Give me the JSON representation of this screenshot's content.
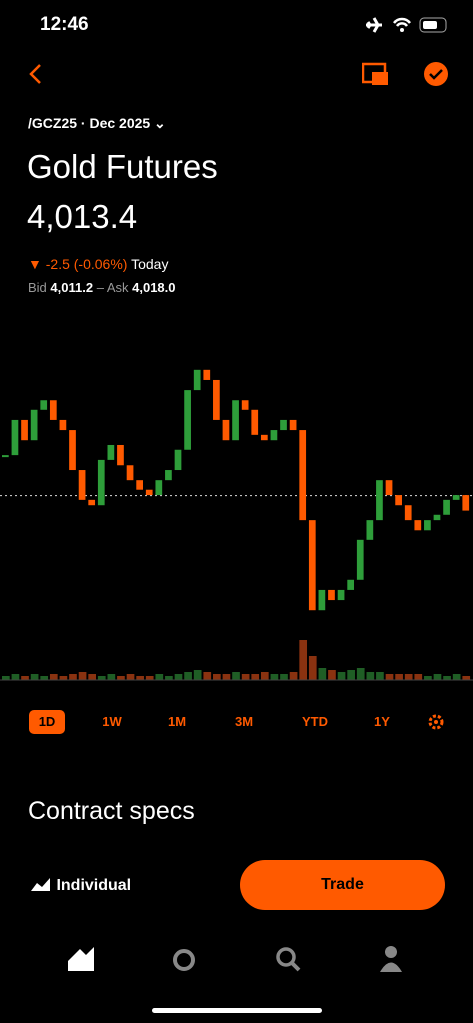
{
  "status_bar": {
    "time": "12:46"
  },
  "header": {
    "contract": "/GCZ25 · Dec 2025",
    "title": "Gold Futures",
    "price": "4,013.4",
    "change": "-2.5 (-0.06%)",
    "change_period": "Today",
    "bid_label": "Bid",
    "bid": "4,011.2",
    "ask_label": "– Ask",
    "ask": "4,018.0"
  },
  "chart": {
    "type": "candlestick",
    "ylim": [
      3985,
      4042
    ],
    "previous_close": 4015.9,
    "closes": [
      4022.7,
      4028.6,
      4025.2,
      4030.3,
      4031.9,
      4028.6,
      4026.9,
      4020.2,
      4015.2,
      4014.3,
      4021.9,
      4024.4,
      4021.0,
      4018.5,
      4016.9,
      4016.0,
      4018.5,
      4020.2,
      4023.6,
      4033.6,
      4037.0,
      4035.3,
      4028.6,
      4025.2,
      4031.9,
      4030.3,
      4026.1,
      4025.2,
      4026.9,
      4028.6,
      4026.9,
      4011.8,
      3996.7,
      4000.1,
      3998.4,
      4000.1,
      4001.8,
      4008.5,
      4011.8,
      4018.5,
      4016.0,
      4014.3,
      4011.8,
      4010.1,
      4011.8,
      4012.7,
      4015.2,
      4016.0,
      4013.4
    ],
    "volumes": [
      2,
      3,
      2,
      3,
      2,
      3,
      2,
      3,
      4,
      3,
      2,
      3,
      2,
      3,
      2,
      2,
      3,
      2,
      3,
      4,
      5,
      4,
      3,
      3,
      4,
      3,
      3,
      4,
      3,
      3,
      4,
      20,
      12,
      6,
      5,
      4,
      5,
      6,
      4,
      4,
      3,
      3,
      3,
      3,
      2,
      3,
      2,
      3,
      2
    ]
  },
  "ranges": [
    "1D",
    "1W",
    "1M",
    "3M",
    "YTD",
    "1Y"
  ],
  "section_title": "Contract specs",
  "account": "Individual",
  "trade_button": "Trade"
}
